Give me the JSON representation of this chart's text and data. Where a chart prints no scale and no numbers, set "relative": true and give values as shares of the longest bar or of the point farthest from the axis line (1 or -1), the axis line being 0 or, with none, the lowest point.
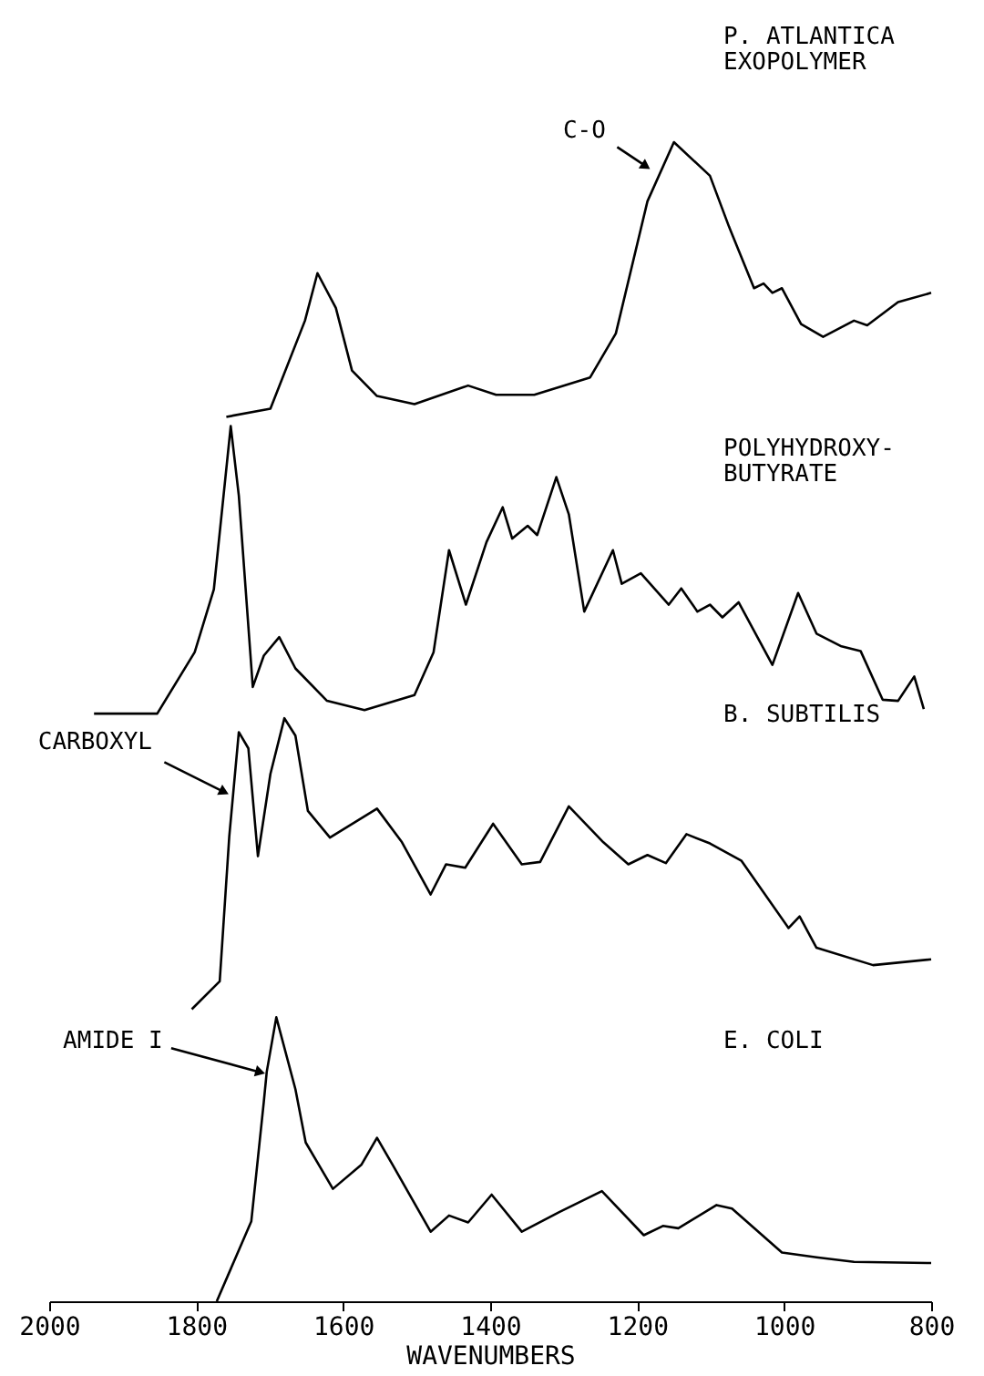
{
  "chart_data": {
    "type": "line",
    "relative": true,
    "xlabel": "WAVENUMBERS",
    "xlim": [
      2000,
      800
    ],
    "xticks": [
      2000,
      1800,
      1600,
      1400,
      1200,
      1000,
      800
    ],
    "grid": false,
    "marker": "none",
    "line_style": "solid",
    "annotations": [
      {
        "text": "C-O",
        "x": 1190,
        "y": 0.98
      },
      {
        "text": "CARBOXYL",
        "x": 1764,
        "y": 0.44
      },
      {
        "text": "AMIDE I",
        "x": 1715,
        "y": 0.198
      },
      "P. ATLANTICA\nEXOPOLYMER",
      "POLYHYDROXY-\nBUTYRATE",
      "B. SUBTILIS",
      "E. COLI"
    ],
    "series": [
      {
        "color": "#000000",
        "x": [
          1759,
          1699,
          1652,
          1635,
          1610,
          1588,
          1554,
          1503,
          1430,
          1392,
          1340,
          1264,
          1229,
          1186,
          1150,
          1101,
          1075,
          1041,
          1028,
          1016,
          1003,
          977,
          947,
          905,
          887,
          845,
          800
        ],
        "values": [
          0.763,
          0.77,
          0.846,
          0.887,
          0.857,
          0.803,
          0.781,
          0.774,
          0.79,
          0.782,
          0.782,
          0.797,
          0.835,
          0.949,
          1.0,
          0.971,
          0.927,
          0.874,
          0.878,
          0.87,
          0.874,
          0.843,
          0.832,
          0.846,
          0.842,
          0.862,
          0.87
        ]
      },
      {
        "color": "#000000",
        "x": [
          1939,
          1853,
          1802,
          1776,
          1753,
          1742,
          1723,
          1708,
          1687,
          1665,
          1622,
          1571,
          1503,
          1477,
          1456,
          1433,
          1405,
          1383,
          1370,
          1349,
          1336,
          1310,
          1293,
          1272,
          1233,
          1221,
          1195,
          1157,
          1140,
          1118,
          1101,
          1084,
          1062,
          1016,
          981,
          956,
          922,
          896,
          866,
          845,
          823,
          810
        ],
        "values": [
          0.507,
          0.507,
          0.56,
          0.614,
          0.755,
          0.695,
          0.53,
          0.557,
          0.573,
          0.546,
          0.518,
          0.51,
          0.523,
          0.56,
          0.648,
          0.601,
          0.655,
          0.685,
          0.658,
          0.669,
          0.661,
          0.711,
          0.679,
          0.595,
          0.648,
          0.619,
          0.628,
          0.601,
          0.615,
          0.595,
          0.601,
          0.59,
          0.603,
          0.549,
          0.611,
          0.576,
          0.565,
          0.561,
          0.519,
          0.518,
          0.539,
          0.511
        ]
      },
      {
        "color": "#000000",
        "x": [
          1806,
          1768,
          1755,
          1742,
          1729,
          1716,
          1699,
          1680,
          1665,
          1648,
          1618,
          1554,
          1520,
          1481,
          1460,
          1434,
          1396,
          1357,
          1332,
          1293,
          1246,
          1212,
          1186,
          1161,
          1133,
          1101,
          1058,
          994,
          979,
          956,
          879,
          800
        ],
        "values": [
          0.252,
          0.276,
          0.401,
          0.491,
          0.477,
          0.384,
          0.455,
          0.503,
          0.488,
          0.423,
          0.4,
          0.425,
          0.396,
          0.351,
          0.377,
          0.374,
          0.412,
          0.377,
          0.379,
          0.427,
          0.396,
          0.377,
          0.385,
          0.378,
          0.403,
          0.395,
          0.38,
          0.322,
          0.332,
          0.305,
          0.29,
          0.295
        ]
      },
      {
        "color": "#000000",
        "x": [
          1772,
          1725,
          1708,
          1704,
          1691,
          1665,
          1651,
          1614,
          1575,
          1554,
          1533,
          1481,
          1456,
          1430,
          1398,
          1357,
          1306,
          1248,
          1191,
          1165,
          1144,
          1092,
          1071,
          1003,
          956,
          905,
          800
        ],
        "values": [
          0.0,
          0.069,
          0.172,
          0.198,
          0.245,
          0.183,
          0.137,
          0.097,
          0.118,
          0.141,
          0.118,
          0.06,
          0.074,
          0.068,
          0.092,
          0.06,
          0.077,
          0.095,
          0.057,
          0.065,
          0.063,
          0.083,
          0.08,
          0.042,
          0.038,
          0.034,
          0.033
        ]
      }
    ]
  }
}
